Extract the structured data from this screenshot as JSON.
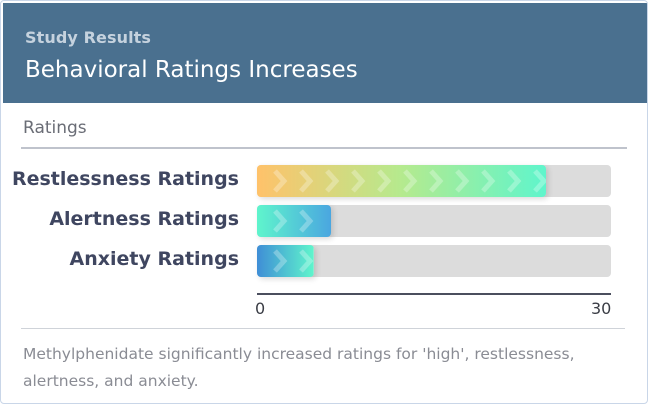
{
  "header": {
    "kicker": "Study Results",
    "title": "Behavioral Ratings Increases"
  },
  "section_label": "Ratings",
  "caption": "Methylphenidate significantly increased ratings for 'high', restlessness, alertness, and anxiety.",
  "chart_data": {
    "type": "bar",
    "orientation": "horizontal",
    "categories": [
      "Restlessness Ratings",
      "Alertness Ratings",
      "Anxiety Ratings"
    ],
    "values": [
      24.5,
      6.3,
      4.8
    ],
    "xlim": [
      0,
      30
    ],
    "ticks": [
      "0",
      "30"
    ],
    "grid": false,
    "colors": [
      [
        "#ffc26a",
        "#b5ea8e",
        "#5ff5cc"
      ],
      [
        "#5ff5cc",
        "#4aa6e0"
      ],
      [
        "#3f8ed6",
        "#5ff5cc"
      ]
    ],
    "track_color": "#dcdcdc"
  }
}
